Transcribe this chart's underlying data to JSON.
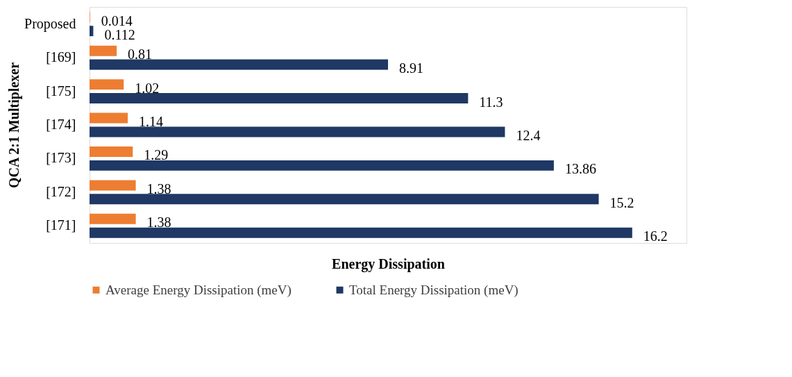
{
  "chart_data": {
    "type": "bar",
    "orientation": "horizontal",
    "xlabel": "Energy Dissipation",
    "ylabel": "QCA 2:1 Multiplexer",
    "categories": [
      "Proposed",
      "[169]",
      "[175]",
      "[174]",
      "[173]",
      "[172]",
      "[171]"
    ],
    "series": [
      {
        "name": "Average Energy Dissipation (meV)",
        "color": "#ed7d31",
        "values": [
          0.014,
          0.81,
          1.02,
          1.14,
          1.29,
          1.38,
          1.38
        ]
      },
      {
        "name": "Total Energy  Dissipation (meV)",
        "color": "#1f3864",
        "values": [
          0.112,
          8.91,
          11.3,
          12.4,
          13.86,
          15.2,
          16.2
        ]
      }
    ],
    "data_labels": true,
    "grid": false,
    "legend": "bottom"
  }
}
